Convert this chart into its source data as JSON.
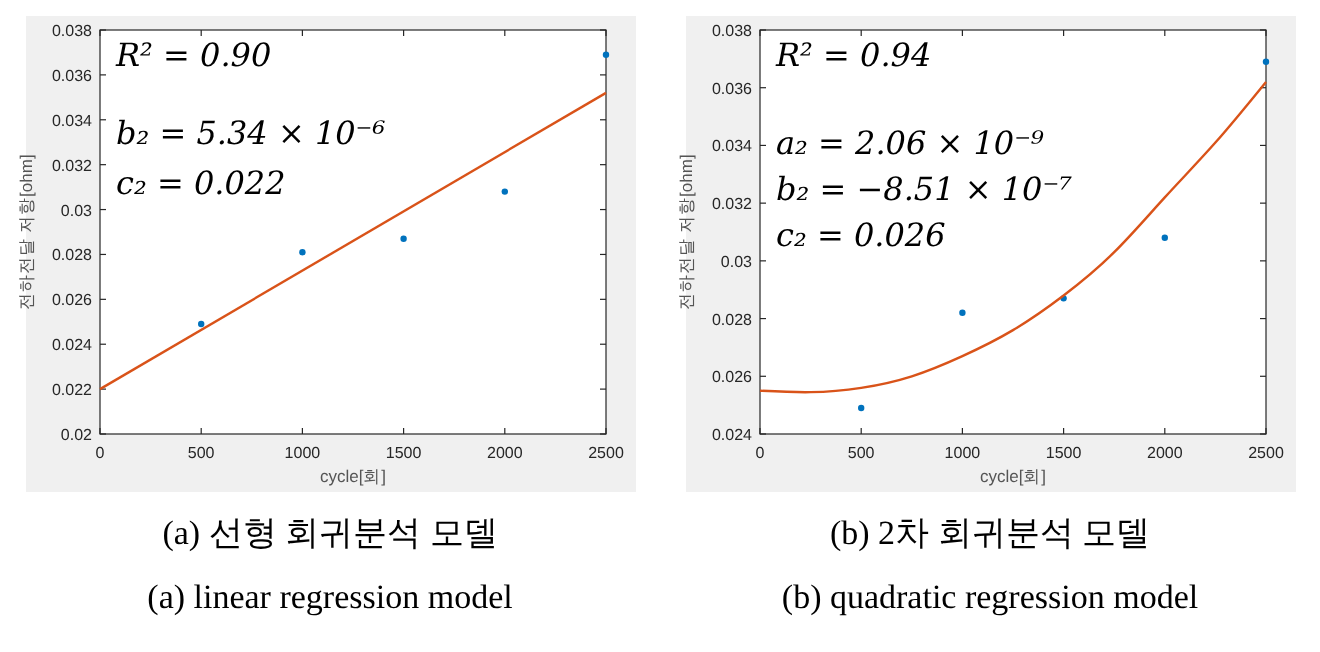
{
  "chart_data": [
    {
      "type": "scatter",
      "title": "(a) 선형 회귀분석 모델",
      "subtitle": "(a) linear regression model",
      "xlabel": "cycle[회]",
      "ylabel": "전하전달 저항[ohm]",
      "x": [
        500,
        1000,
        1500,
        2000,
        2500
      ],
      "xlim": [
        0,
        2500
      ],
      "xticks": [
        0,
        500,
        1000,
        1500,
        2000,
        2500
      ],
      "ylim": [
        0.02,
        0.038
      ],
      "yticks": [
        0.02,
        0.022,
        0.024,
        0.026,
        0.028,
        0.03,
        0.032,
        0.034,
        0.036,
        0.038
      ],
      "grid": false,
      "series": [
        {
          "marker": "circle",
          "color": "#0072bd",
          "values": [
            0.0249,
            0.0281,
            0.0287,
            0.0308,
            0.0369
          ]
        },
        {
          "type": "line",
          "color": "#d95319",
          "x": [
            0,
            2500
          ],
          "values": [
            0.022,
            0.0352
          ]
        }
      ],
      "annotations": [
        "R² = 0.90",
        "b₂ = 5.34 × 10⁻⁶",
        "c₂ = 0.022"
      ]
    },
    {
      "type": "scatter",
      "title": "(b) 2차 회귀분석 모델",
      "subtitle": "(b) quadratic regression model",
      "xlabel": "cycle[회]",
      "ylabel": "전하전달 저항[ohm]",
      "x": [
        500,
        1000,
        1500,
        2000,
        2500
      ],
      "xlim": [
        0,
        2500
      ],
      "xticks": [
        0,
        500,
        1000,
        1500,
        2000,
        2500
      ],
      "ylim": [
        0.024,
        0.038
      ],
      "yticks": [
        0.024,
        0.026,
        0.028,
        0.03,
        0.032,
        0.034,
        0.036,
        0.038
      ],
      "grid": false,
      "series": [
        {
          "marker": "circle",
          "color": "#0072bd",
          "values": [
            0.0249,
            0.0282,
            0.0287,
            0.0308,
            0.0369
          ]
        },
        {
          "type": "line",
          "color": "#d95319",
          "x": [
            0,
            250,
            500,
            750,
            1000,
            1250,
            1500,
            1750,
            2000,
            2250,
            2500
          ],
          "values": [
            0.0255,
            0.02545,
            0.0256,
            0.026,
            0.0267,
            0.0276,
            0.0288,
            0.0303,
            0.0322,
            0.0341,
            0.0362
          ]
        }
      ],
      "annotations": [
        "R² = 0.94",
        "a₂ = 2.06 × 10⁻⁹",
        "b₂ = −8.51 × 10⁻⁷",
        "c₂ = 0.026"
      ]
    }
  ]
}
